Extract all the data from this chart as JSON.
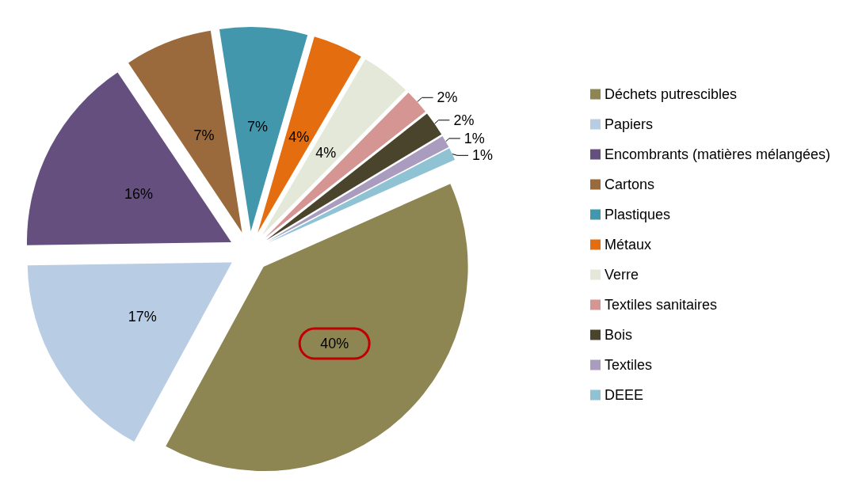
{
  "chart_data": {
    "type": "pie",
    "categories": [
      "Déchets putrescibles",
      "Papiers",
      "Encombrants (matières mélangées)",
      "Cartons",
      "Plastiques",
      "Métaux",
      "Verre",
      "Textiles sanitaires",
      "Bois",
      "Textiles",
      "DEEE"
    ],
    "values": [
      40,
      17,
      16,
      7,
      7,
      4,
      4,
      2,
      2,
      1,
      1
    ],
    "value_labels": [
      "40%",
      "17%",
      "16%",
      "7%",
      "7%",
      "4%",
      "4%",
      "2%",
      "2%",
      "1%",
      "1%"
    ],
    "colors": [
      "#8d8552",
      "#b8cce4",
      "#644f7e",
      "#9a6a3c",
      "#4397ad",
      "#e36d0f",
      "#e3e8d8",
      "#d49593",
      "#4a442c",
      "#a99cbf",
      "#8fc3d4"
    ],
    "legend": "right"
  }
}
